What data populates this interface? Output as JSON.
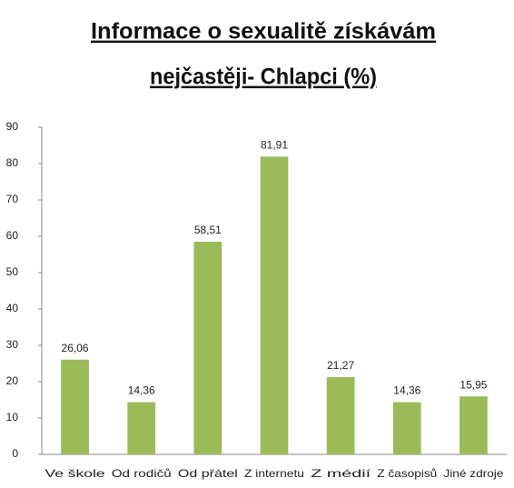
{
  "chart_data": {
    "type": "bar",
    "title": [
      "Informace o sexualitě  získávám",
      "nejčastěji- Chlapci (%)"
    ],
    "categories": [
      "Ve škole",
      "Od rodičů",
      "Od přátel",
      "Z internetu",
      "Z médií",
      "Z časopisů",
      "Jiné zdroje"
    ],
    "values": [
      26.06,
      14.36,
      58.51,
      81.91,
      21.27,
      14.36,
      15.95
    ],
    "value_labels": [
      "26,06",
      "14,36",
      "58,51",
      "81,91",
      "21,27",
      "14,36",
      "15,95"
    ],
    "color": "#9bbb59",
    "ylim": [
      0,
      90
    ],
    "yticks": [
      0,
      10,
      20,
      30,
      40,
      50,
      60,
      70,
      80,
      90
    ],
    "grid": false
  }
}
